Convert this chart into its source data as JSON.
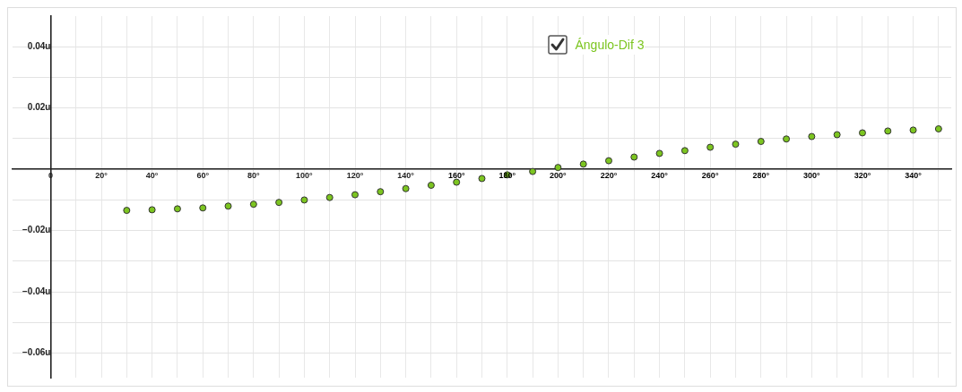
{
  "chart_data": {
    "type": "scatter",
    "x": [
      30,
      40,
      50,
      60,
      70,
      80,
      90,
      100,
      110,
      120,
      130,
      140,
      150,
      160,
      170,
      180,
      190,
      200,
      210,
      220,
      230,
      240,
      250,
      260,
      270,
      280,
      290,
      300,
      310,
      320,
      330,
      340,
      350
    ],
    "series": [
      {
        "name": "Ángulo-Dif 3",
        "color": "#7cc520",
        "values": [
          -0.0134,
          -0.0132,
          -0.0129,
          -0.0126,
          -0.012,
          -0.0114,
          -0.0108,
          -0.01,
          -0.0092,
          -0.0083,
          -0.0073,
          -0.0063,
          -0.0052,
          -0.0042,
          -0.003,
          -0.0018,
          -0.0007,
          0.0006,
          0.0017,
          0.0028,
          0.004,
          0.0052,
          0.0061,
          0.0072,
          0.0082,
          0.0091,
          0.0099,
          0.0107,
          0.0113,
          0.0119,
          0.0125,
          0.0128,
          0.0132
        ]
      }
    ],
    "xlim": [
      -15,
      355
    ],
    "ylim": [
      -0.068,
      0.05
    ],
    "xticks": [
      {
        "value": 0,
        "label": "0"
      },
      {
        "value": 10,
        "label": null
      },
      {
        "value": 20,
        "label": "20°"
      },
      {
        "value": 30,
        "label": null
      },
      {
        "value": 40,
        "label": "40°"
      },
      {
        "value": 50,
        "label": null
      },
      {
        "value": 60,
        "label": "60°"
      },
      {
        "value": 70,
        "label": null
      },
      {
        "value": 80,
        "label": "80°"
      },
      {
        "value": 90,
        "label": null
      },
      {
        "value": 100,
        "label": "100°"
      },
      {
        "value": 110,
        "label": null
      },
      {
        "value": 120,
        "label": "120°"
      },
      {
        "value": 130,
        "label": null
      },
      {
        "value": 140,
        "label": "140°"
      },
      {
        "value": 150,
        "label": null
      },
      {
        "value": 160,
        "label": "160°"
      },
      {
        "value": 170,
        "label": null
      },
      {
        "value": 180,
        "label": "180°"
      },
      {
        "value": 190,
        "label": null
      },
      {
        "value": 200,
        "label": "200°"
      },
      {
        "value": 210,
        "label": null
      },
      {
        "value": 220,
        "label": "220°"
      },
      {
        "value": 230,
        "label": null
      },
      {
        "value": 240,
        "label": "240°"
      },
      {
        "value": 250,
        "label": null
      },
      {
        "value": 260,
        "label": "260°"
      },
      {
        "value": 270,
        "label": null
      },
      {
        "value": 280,
        "label": "280°"
      },
      {
        "value": 290,
        "label": null
      },
      {
        "value": 300,
        "label": "300°"
      },
      {
        "value": 310,
        "label": null
      },
      {
        "value": 320,
        "label": "320°"
      },
      {
        "value": 330,
        "label": null
      },
      {
        "value": 340,
        "label": "340°"
      },
      {
        "value": 350,
        "label": null
      }
    ],
    "yticks": [
      {
        "value": -0.06,
        "label": "−0.06u"
      },
      {
        "value": -0.05,
        "label": null
      },
      {
        "value": -0.04,
        "label": "−0.04u"
      },
      {
        "value": -0.03,
        "label": null
      },
      {
        "value": -0.02,
        "label": "−0.02u"
      },
      {
        "value": -0.01,
        "label": null
      },
      {
        "value": 0,
        "label": null
      },
      {
        "value": 0.01,
        "label": null
      },
      {
        "value": 0.02,
        "label": "0.02u"
      },
      {
        "value": 0.03,
        "label": null
      },
      {
        "value": 0.04,
        "label": "0.04u"
      }
    ],
    "grid": true,
    "legend": "top",
    "marker": "circle"
  }
}
